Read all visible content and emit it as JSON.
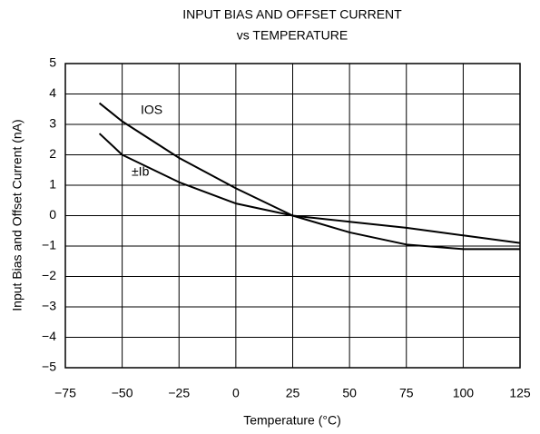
{
  "chart_data": {
    "type": "line",
    "title": [
      "INPUT BIAS AND OFFSET CURRENT",
      "vs TEMPERATURE"
    ],
    "x_label": "Temperature (°C)",
    "y_label": "Input Bias and Offset Current (nA)",
    "x": [
      -60,
      -50,
      -25,
      0,
      25,
      50,
      75,
      100,
      125
    ],
    "series": [
      {
        "name": "IOS",
        "color": "#000000",
        "values": [
          3.7,
          3.1,
          1.9,
          0.9,
          0,
          -0.55,
          -0.95,
          -1.1,
          -1.1
        ]
      },
      {
        "name": "±Ib",
        "color": "#000000",
        "values": [
          2.7,
          2.0,
          1.1,
          0.4,
          0,
          -0.2,
          -0.4,
          -0.65,
          -0.9
        ]
      }
    ],
    "xlim": [
      -75,
      125
    ],
    "xticks": [
      {
        "value": -75,
        "label": "−75"
      },
      {
        "value": -50,
        "label": "−50"
      },
      {
        "value": -25,
        "label": "−25"
      },
      0,
      25,
      50,
      75,
      100,
      125
    ],
    "ylim": [
      -5,
      5
    ],
    "yticks": [
      {
        "value": -5,
        "label": "−5"
      },
      {
        "value": -4,
        "label": "−4"
      },
      {
        "value": -3,
        "label": "−3"
      },
      {
        "value": -2,
        "label": "−2"
      },
      {
        "value": -1,
        "label": "−1"
      },
      0,
      1,
      2,
      3,
      4,
      5
    ],
    "grid": true
  }
}
